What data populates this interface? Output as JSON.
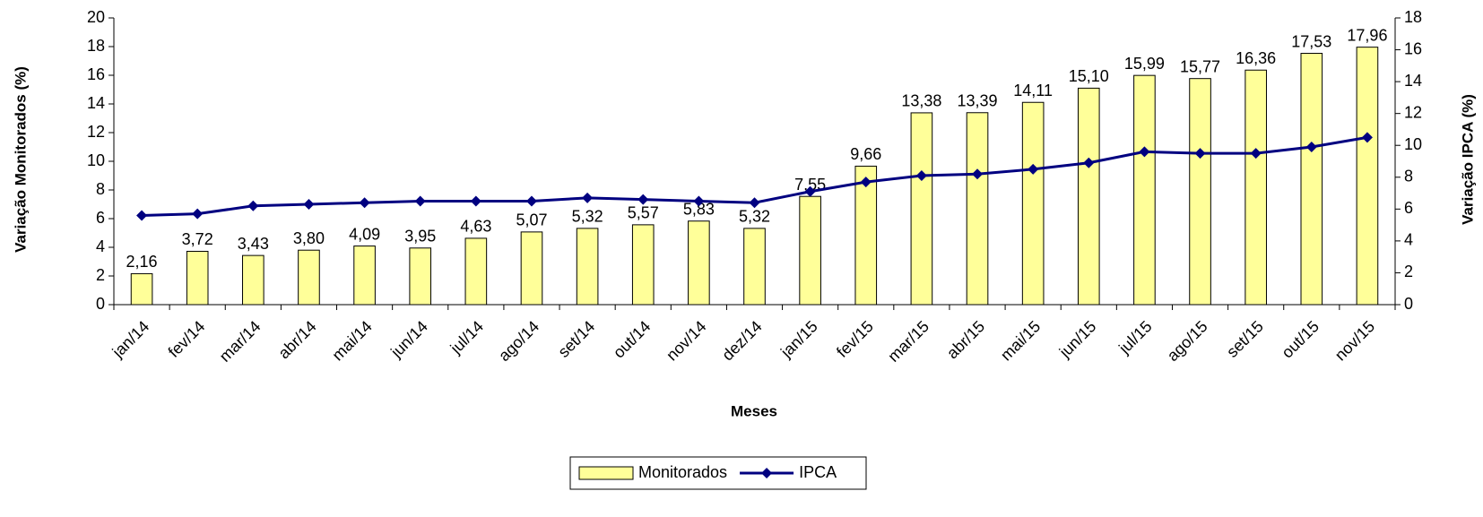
{
  "chart_data": {
    "type": "bar",
    "x_label": "Meses",
    "y_label": "Variação Monitorados (%)",
    "y2_label": "Variação IPCA (%)",
    "categories": [
      "jan/14",
      "fev/14",
      "mar/14",
      "abr/14",
      "mai/14",
      "jun/14",
      "jul/14",
      "ago/14",
      "set/14",
      "out/14",
      "nov/14",
      "dez/14",
      "jan/15",
      "fev/15",
      "mar/15",
      "abr/15",
      "mai/15",
      "jun/15",
      "jul/15",
      "ago/15",
      "set/15",
      "out/15",
      "nov/15"
    ],
    "series": [
      {
        "name": "Monitorados",
        "type": "bar",
        "color": "#ffff99",
        "values": [
          2.16,
          3.72,
          3.43,
          3.8,
          4.09,
          3.95,
          4.63,
          5.07,
          5.32,
          5.57,
          5.83,
          5.32,
          7.55,
          9.66,
          13.38,
          13.39,
          14.11,
          15.1,
          15.99,
          15.77,
          16.36,
          17.53,
          17.96
        ],
        "value_labels": [
          "2,16",
          "3,72",
          "3,43",
          "3,80",
          "4,09",
          "3,95",
          "4,63",
          "5,07",
          "5,32",
          "5,57",
          "5,83",
          "5,32",
          "7,55",
          "9,66",
          "13,38",
          "13,39",
          "14,11",
          "15,10",
          "15,99",
          "15,77",
          "16,36",
          "17,53",
          "17,96"
        ]
      },
      {
        "name": "IPCA",
        "type": "line",
        "axis": "y2",
        "color": "#000080",
        "values": [
          5.6,
          5.7,
          6.2,
          6.3,
          6.4,
          6.5,
          6.5,
          6.5,
          6.7,
          6.6,
          6.5,
          6.4,
          7.1,
          7.7,
          8.1,
          8.2,
          8.5,
          8.9,
          9.6,
          9.5,
          9.5,
          9.9,
          10.5
        ]
      }
    ],
    "ylim": [
      0,
      20
    ],
    "yticks": [
      0,
      2,
      4,
      6,
      8,
      10,
      12,
      14,
      16,
      18,
      20
    ],
    "y2lim": [
      0,
      18
    ],
    "y2ticks": [
      0,
      2,
      4,
      6,
      8,
      10,
      12,
      14,
      16,
      18
    ],
    "legend": "bottom"
  }
}
